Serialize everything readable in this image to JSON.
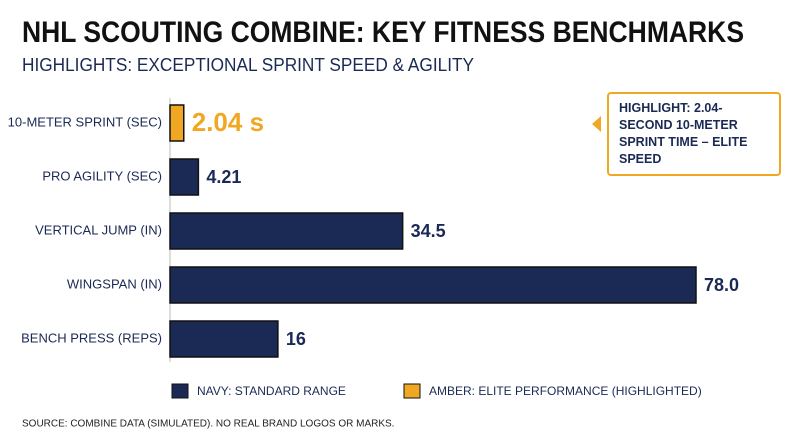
{
  "chart_data": {
    "type": "bar",
    "orientation": "horizontal",
    "title": "NHL SCOUTING COMBINE: KEY FITNESS BENCHMARKS",
    "subtitle": "HIGHLIGHTS: EXCEPTIONAL SPRINT SPEED & AGILITY",
    "categories": [
      "10-METER SPRINT (SEC)",
      "PRO AGILITY (SEC)",
      "VERTICAL JUMP (IN)",
      "WINGSPAN (IN)",
      "BENCH PRESS (REPS)"
    ],
    "values": [
      2.04,
      4.21,
      34.5,
      78.0,
      16
    ],
    "value_labels": [
      "2.04 s",
      "4.21",
      "34.5",
      "78.0",
      "16"
    ],
    "colors": [
      "#f0a823",
      "#1b2a55",
      "#1b2a55",
      "#1b2a55",
      "#1b2a55"
    ],
    "legend": [
      {
        "name": "NAVY: STANDARD RANGE",
        "color": "#1b2a55"
      },
      {
        "name": "AMBER: ELITE PERFORMANCE (HIGHLIGHTED)",
        "color": "#f0a823"
      }
    ],
    "annotation": "HIGHLIGHT: 2.04-SECOND 10-METER SPRINT TIME – ELITE SPEED",
    "source": "SOURCE: COMBINE DATA (SIMULATED). NO REAL BRAND LOGOS OR MARKS."
  }
}
